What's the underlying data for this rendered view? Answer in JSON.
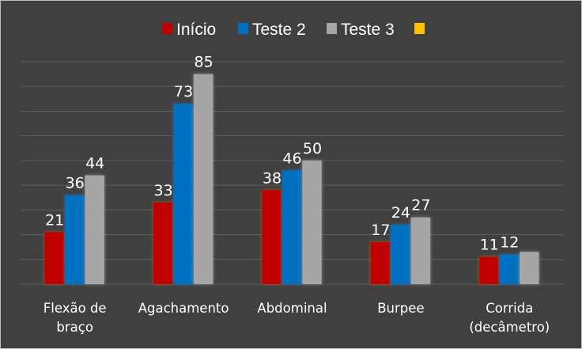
{
  "chart_data": {
    "type": "bar",
    "title": "",
    "xlabel": "",
    "ylabel": "",
    "categories": [
      "Flexão de braço",
      "Agachamento",
      "Abdominal",
      "Burpee",
      "Corrida (decâmetro)"
    ],
    "category_lines": [
      [
        "Flexão de",
        "braço"
      ],
      [
        "Agachamento"
      ],
      [
        "Abdominal"
      ],
      [
        "Burpee"
      ],
      [
        "Corrida",
        "(decâmetro)"
      ]
    ],
    "series": [
      {
        "name": "Início",
        "values": [
          21,
          33,
          38,
          17,
          11
        ],
        "color": "#c00000",
        "labels": [
          "21",
          "33",
          "38",
          "17",
          "11"
        ]
      },
      {
        "name": "Teste 2",
        "values": [
          36,
          73,
          46,
          24,
          12
        ],
        "color": "#0070c0",
        "labels": [
          "36",
          "73",
          "46",
          "24",
          "12"
        ]
      },
      {
        "name": "Teste 3",
        "values": [
          44,
          85,
          50,
          27,
          13
        ],
        "color": "#a6a6a6",
        "labels": [
          "44",
          "85",
          "50",
          "27",
          ""
        ]
      }
    ],
    "extra_legend_swatch_color": "#ffc000",
    "ylim": [
      0,
      90
    ],
    "grid": true,
    "legend": "top-center"
  }
}
